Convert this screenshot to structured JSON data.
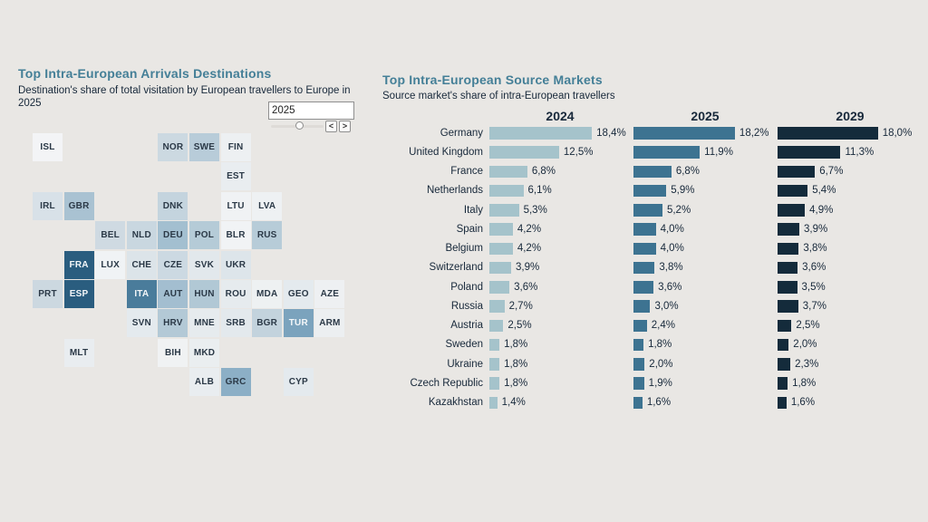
{
  "app": {
    "background": "#e9e7e4",
    "accent_teal": "#447f97",
    "text_dark": "#17283a"
  },
  "left_panel": {
    "title": "Top Intra-European Arrivals Destinations",
    "subtitle": "Destination's share of total visitation by European travellers to Europe in 2025",
    "year_control": {
      "value": "2025",
      "prev": "<",
      "next": ">"
    }
  },
  "right_panel": {
    "title": "Top Intra-European Source Markets",
    "subtitle": "Source market's share of intra-European travellers"
  },
  "chart_data": [
    {
      "type": "heatmap",
      "title": "Top Intra-European Arrivals Destinations",
      "subtitle": "Destination's share of total visitation by European travellers to Europe in 2025",
      "note": "Tile-grid map of Europe; darker blue = higher share of arrivals; no numeric labels shown",
      "tiles": [
        {
          "code": "ISL",
          "row": 0,
          "col": 0,
          "color": "#f3f4f6",
          "text": "dark"
        },
        {
          "code": "NOR",
          "row": 0,
          "col": 4,
          "color": "#ccd9e1",
          "text": "dark"
        },
        {
          "code": "SWE",
          "row": 0,
          "col": 5,
          "color": "#b8ccd9",
          "text": "dark"
        },
        {
          "code": "FIN",
          "row": 0,
          "col": 6,
          "color": "#edf0f2",
          "text": "dark"
        },
        {
          "code": "EST",
          "row": 1,
          "col": 6,
          "color": "#e9edf0",
          "text": "dark"
        },
        {
          "code": "IRL",
          "row": 2,
          "col": 0,
          "color": "#d8e1e8",
          "text": "dark"
        },
        {
          "code": "GBR",
          "row": 2,
          "col": 1,
          "color": "#a9c2d2",
          "text": "dark"
        },
        {
          "code": "DNK",
          "row": 2,
          "col": 4,
          "color": "#c4d4de",
          "text": "dark"
        },
        {
          "code": "LTU",
          "row": 2,
          "col": 6,
          "color": "#f0f2f4",
          "text": "dark"
        },
        {
          "code": "LVA",
          "row": 2,
          "col": 7,
          "color": "#eef1f3",
          "text": "dark"
        },
        {
          "code": "BEL",
          "row": 3,
          "col": 2,
          "color": "#cfdae2",
          "text": "dark"
        },
        {
          "code": "NLD",
          "row": 3,
          "col": 3,
          "color": "#c9d7e0",
          "text": "dark"
        },
        {
          "code": "DEU",
          "row": 3,
          "col": 4,
          "color": "#a3bfd0",
          "text": "dark"
        },
        {
          "code": "POL",
          "row": 3,
          "col": 5,
          "color": "#b5cbd7",
          "text": "dark"
        },
        {
          "code": "BLR",
          "row": 3,
          "col": 6,
          "color": "#f1f3f5",
          "text": "dark"
        },
        {
          "code": "RUS",
          "row": 3,
          "col": 7,
          "color": "#b7ccd8",
          "text": "dark"
        },
        {
          "code": "FRA",
          "row": 4,
          "col": 1,
          "color": "#2a5d7f",
          "text": "white"
        },
        {
          "code": "LUX",
          "row": 4,
          "col": 2,
          "color": "#f0f3f5",
          "text": "dark"
        },
        {
          "code": "CHE",
          "row": 4,
          "col": 3,
          "color": "#dce4e9",
          "text": "dark"
        },
        {
          "code": "CZE",
          "row": 4,
          "col": 4,
          "color": "#ccd9e2",
          "text": "dark"
        },
        {
          "code": "SVK",
          "row": 4,
          "col": 5,
          "color": "#e2e8ec",
          "text": "dark"
        },
        {
          "code": "UKR",
          "row": 4,
          "col": 6,
          "color": "#dde5ea",
          "text": "dark"
        },
        {
          "code": "PRT",
          "row": 5,
          "col": 0,
          "color": "#ccd8e0",
          "text": "dark"
        },
        {
          "code": "ESP",
          "row": 5,
          "col": 1,
          "color": "#2a5d7f",
          "text": "white"
        },
        {
          "code": "ITA",
          "row": 5,
          "col": 3,
          "color": "#4a7c9b",
          "text": "white"
        },
        {
          "code": "AUT",
          "row": 5,
          "col": 4,
          "color": "#a3bed0",
          "text": "dark"
        },
        {
          "code": "HUN",
          "row": 5,
          "col": 5,
          "color": "#b1c8d5",
          "text": "dark"
        },
        {
          "code": "ROU",
          "row": 5,
          "col": 6,
          "color": "#e6ebee",
          "text": "dark"
        },
        {
          "code": "MDA",
          "row": 5,
          "col": 7,
          "color": "#eef1f2",
          "text": "dark"
        },
        {
          "code": "GEO",
          "row": 5,
          "col": 8,
          "color": "#e4eaee",
          "text": "dark"
        },
        {
          "code": "AZE",
          "row": 5,
          "col": 9,
          "color": "#eef0f2",
          "text": "dark"
        },
        {
          "code": "SVN",
          "row": 6,
          "col": 3,
          "color": "#e4eaee",
          "text": "dark"
        },
        {
          "code": "HRV",
          "row": 6,
          "col": 4,
          "color": "#b3c9d6",
          "text": "dark"
        },
        {
          "code": "MNE",
          "row": 6,
          "col": 5,
          "color": "#e6ebee",
          "text": "dark"
        },
        {
          "code": "SRB",
          "row": 6,
          "col": 6,
          "color": "#e3e9ed",
          "text": "dark"
        },
        {
          "code": "BGR",
          "row": 6,
          "col": 7,
          "color": "#c3d3dd",
          "text": "dark"
        },
        {
          "code": "TUR",
          "row": 6,
          "col": 8,
          "color": "#7ba3bd",
          "text": "white"
        },
        {
          "code": "ARM",
          "row": 6,
          "col": 9,
          "color": "#eceff1",
          "text": "dark"
        },
        {
          "code": "MLT",
          "row": 7,
          "col": 1,
          "color": "#e9edf0",
          "text": "dark"
        },
        {
          "code": "BIH",
          "row": 7,
          "col": 4,
          "color": "#f0f2f3",
          "text": "dark"
        },
        {
          "code": "MKD",
          "row": 7,
          "col": 5,
          "color": "#eaeef0",
          "text": "dark"
        },
        {
          "code": "ALB",
          "row": 8,
          "col": 5,
          "color": "#e9edf0",
          "text": "dark"
        },
        {
          "code": "GRC",
          "row": 8,
          "col": 6,
          "color": "#8cafc6",
          "text": "dark"
        },
        {
          "code": "CYP",
          "row": 8,
          "col": 8,
          "color": "#e4eaee",
          "text": "dark"
        }
      ],
      "tile_text_colors": {
        "dark": "#2b3947",
        "white": "#f4f7f9"
      }
    },
    {
      "type": "bar",
      "orientation": "horizontal",
      "title": "Top Intra-European Source Markets",
      "subtitle": "Source market's share of intra-European travellers",
      "categories": [
        "Germany",
        "United Kingdom",
        "France",
        "Netherlands",
        "Italy",
        "Spain",
        "Belgium",
        "Switzerland",
        "Poland",
        "Russia",
        "Austria",
        "Sweden",
        "Ukraine",
        "Czech Republic",
        "Kazakhstan"
      ],
      "series": [
        {
          "name": "2024",
          "color": "#a5c3cb",
          "values": [
            18.4,
            12.5,
            6.8,
            6.1,
            5.3,
            4.2,
            4.2,
            3.9,
            3.6,
            2.7,
            2.5,
            1.8,
            1.8,
            1.8,
            1.4
          ],
          "labels": [
            "18,4%",
            "12,5%",
            "6,8%",
            "6,1%",
            "5,3%",
            "4,2%",
            "4,2%",
            "3,9%",
            "3,6%",
            "2,7%",
            "2,5%",
            "1,8%",
            "1,8%",
            "1,8%",
            "1,4%"
          ]
        },
        {
          "name": "2025",
          "color": "#3d7391",
          "values": [
            18.2,
            11.9,
            6.8,
            5.9,
            5.2,
            4.0,
            4.0,
            3.8,
            3.6,
            3.0,
            2.4,
            1.8,
            2.0,
            1.9,
            1.6
          ],
          "labels": [
            "18,2%",
            "11,9%",
            "6,8%",
            "5,9%",
            "5,2%",
            "4,0%",
            "4,0%",
            "3,8%",
            "3,6%",
            "3,0%",
            "2,4%",
            "1,8%",
            "2,0%",
            "1,9%",
            "1,6%"
          ]
        },
        {
          "name": "2029",
          "color": "#142b3b",
          "values": [
            18.0,
            11.3,
            6.7,
            5.4,
            4.9,
            3.9,
            3.8,
            3.6,
            3.5,
            3.7,
            2.5,
            2.0,
            2.3,
            1.8,
            1.6
          ],
          "labels": [
            "18,0%",
            "11,3%",
            "6,7%",
            "5,4%",
            "4,9%",
            "3,9%",
            "3,8%",
            "3,6%",
            "3,5%",
            "3,7%",
            "2,5%",
            "2,0%",
            "2,3%",
            "1,8%",
            "1,6%"
          ]
        }
      ],
      "xlim": [
        0,
        20
      ],
      "value_labels_shown": true,
      "gridlines": false,
      "legend": "column headers 2024 / 2025 / 2029 above each bar group"
    }
  ]
}
